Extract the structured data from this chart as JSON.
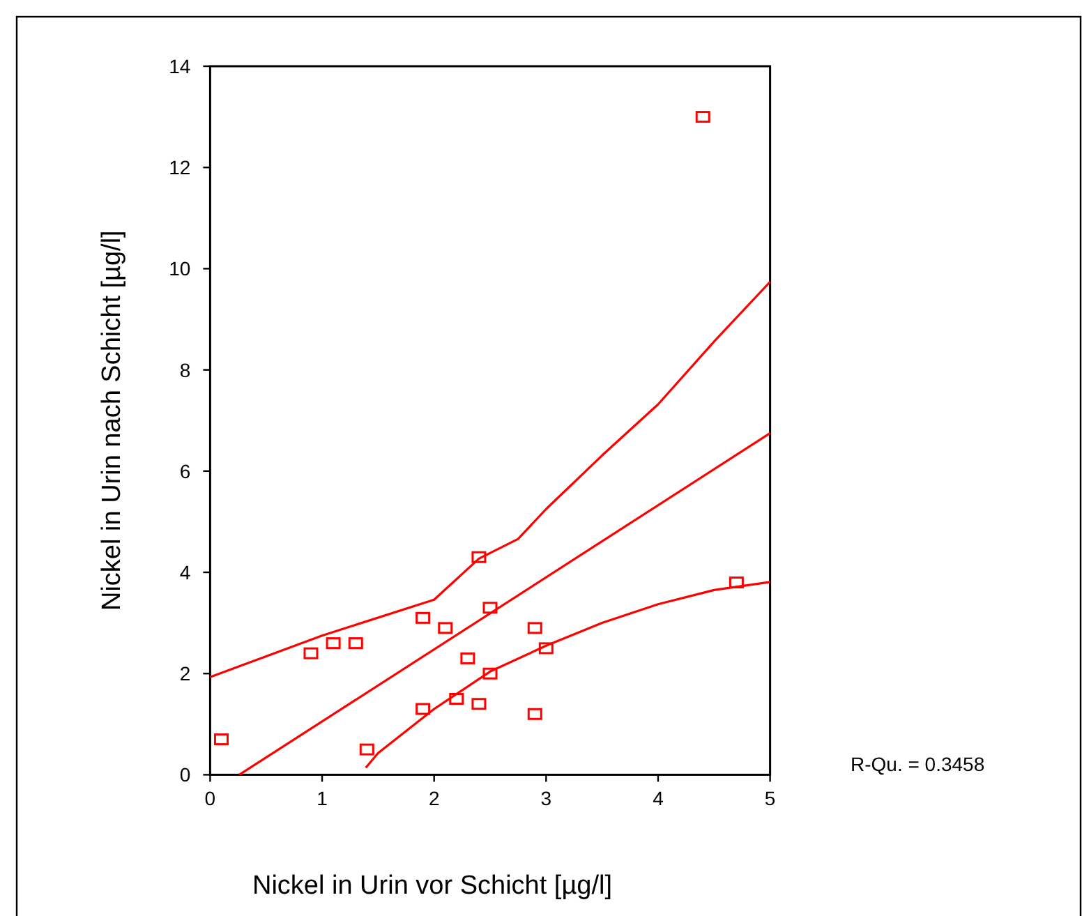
{
  "chart_data": {
    "type": "scatter",
    "xlabel": "Nickel in Urin vor Schicht [µg/l]",
    "ylabel": "Nickel in Urin nach Schicht [µg/l]",
    "xlim": [
      0,
      5
    ],
    "ylim": [
      0,
      14
    ],
    "xticks": [
      0,
      1,
      2,
      3,
      4,
      5
    ],
    "yticks": [
      0,
      2,
      4,
      6,
      8,
      10,
      12,
      14
    ],
    "grid": false,
    "annotations": [
      "R-Qu. = 0.3458"
    ],
    "series": [
      {
        "color": "#ff0000",
        "marker": "square",
        "x": [
          0.1,
          0.9,
          1.1,
          1.3,
          1.4,
          1.9,
          1.9,
          2.1,
          2.2,
          2.3,
          2.4,
          2.4,
          2.5,
          2.5,
          2.9,
          2.9,
          3.0,
          4.4,
          4.7
        ],
        "values": [
          0.7,
          2.4,
          2.6,
          2.6,
          0.5,
          3.1,
          1.3,
          2.9,
          1.5,
          2.3,
          4.3,
          1.4,
          3.3,
          2.0,
          2.9,
          1.2,
          2.5,
          13.0,
          3.8
        ]
      },
      {
        "type": "line",
        "color": "#ff0000",
        "line_style": "solid",
        "x": [
          0.26,
          5
        ],
        "values": [
          0,
          6.75
        ]
      },
      {
        "type": "line",
        "color": "#ff0000",
        "line_style": "solid",
        "x": [
          0,
          1,
          2,
          2.4,
          2.75,
          3,
          3.5,
          4,
          4.5,
          5
        ],
        "values": [
          1.93,
          2.75,
          3.46,
          4.27,
          4.66,
          5.25,
          6.31,
          7.32,
          8.56,
          9.74
        ]
      },
      {
        "type": "line",
        "color": "#ff0000",
        "line_style": "solid",
        "x": [
          1.39,
          1.5,
          2,
          2.5,
          3,
          3.5,
          4,
          4.5,
          5
        ],
        "values": [
          0.14,
          0.43,
          1.3,
          2.04,
          2.55,
          3.0,
          3.37,
          3.65,
          3.81
        ]
      }
    ]
  }
}
